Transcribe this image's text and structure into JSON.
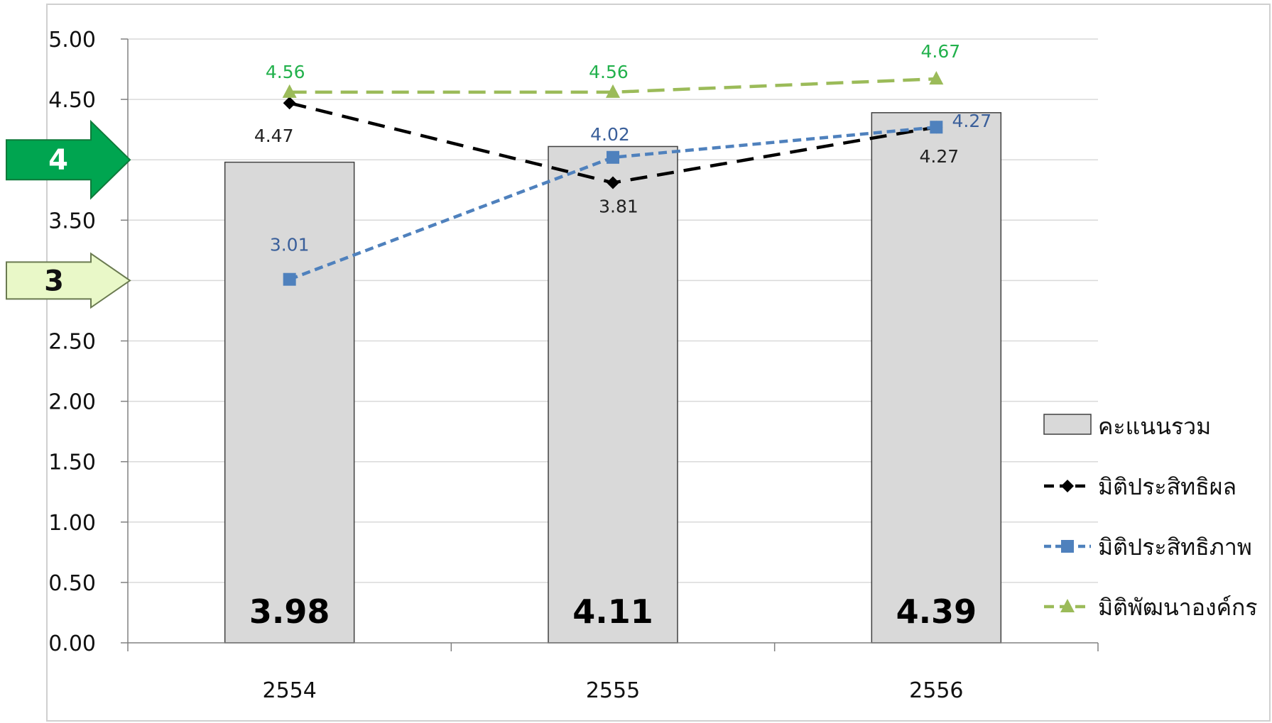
{
  "chart_data": {
    "type": "bar",
    "categories": [
      "2554",
      "2555",
      "2556"
    ],
    "ylim": [
      0,
      5
    ],
    "y_ticks": [
      "0.00",
      "0.50",
      "1.00",
      "1.50",
      "2.00",
      "2.50",
      "3.00",
      "3.50",
      "4.00",
      "4.50",
      "5.00"
    ],
    "grid": true,
    "legend_position": "right",
    "bars": {
      "name": "คะแนนรวม",
      "values": [
        3.98,
        4.11,
        4.39
      ],
      "labels": [
        "3.98",
        "4.11",
        "4.39"
      ],
      "color": "#d9d9d9"
    },
    "series": [
      {
        "name": "มิติประสิทธิผล",
        "values": [
          4.47,
          3.81,
          4.27
        ],
        "labels": [
          "4.47",
          "3.81",
          "4.27"
        ],
        "color": "#000000",
        "label_color": "#222222",
        "marker": "diamond"
      },
      {
        "name": "มิติประสิทธิภาพ",
        "values": [
          3.01,
          4.02,
          4.27
        ],
        "labels": [
          "3.01",
          "4.02",
          "4.27"
        ],
        "color": "#4f81bd",
        "label_color": "#3a5f9a",
        "marker": "square"
      },
      {
        "name": "มิติพัฒนาองค์กร",
        "values": [
          4.56,
          4.56,
          4.67
        ],
        "labels": [
          "4.56",
          "4.56",
          "4.67"
        ],
        "color": "#9bbb59",
        "label_color": "#22b14c",
        "marker": "triangle"
      }
    ],
    "annotations": [
      {
        "text": "4",
        "y": 4.0,
        "color": "#00a550",
        "text_color": "#ffffff"
      },
      {
        "text": "3",
        "y": 3.0,
        "color": "#e9f8c8",
        "text_color": "#111111"
      }
    ]
  }
}
